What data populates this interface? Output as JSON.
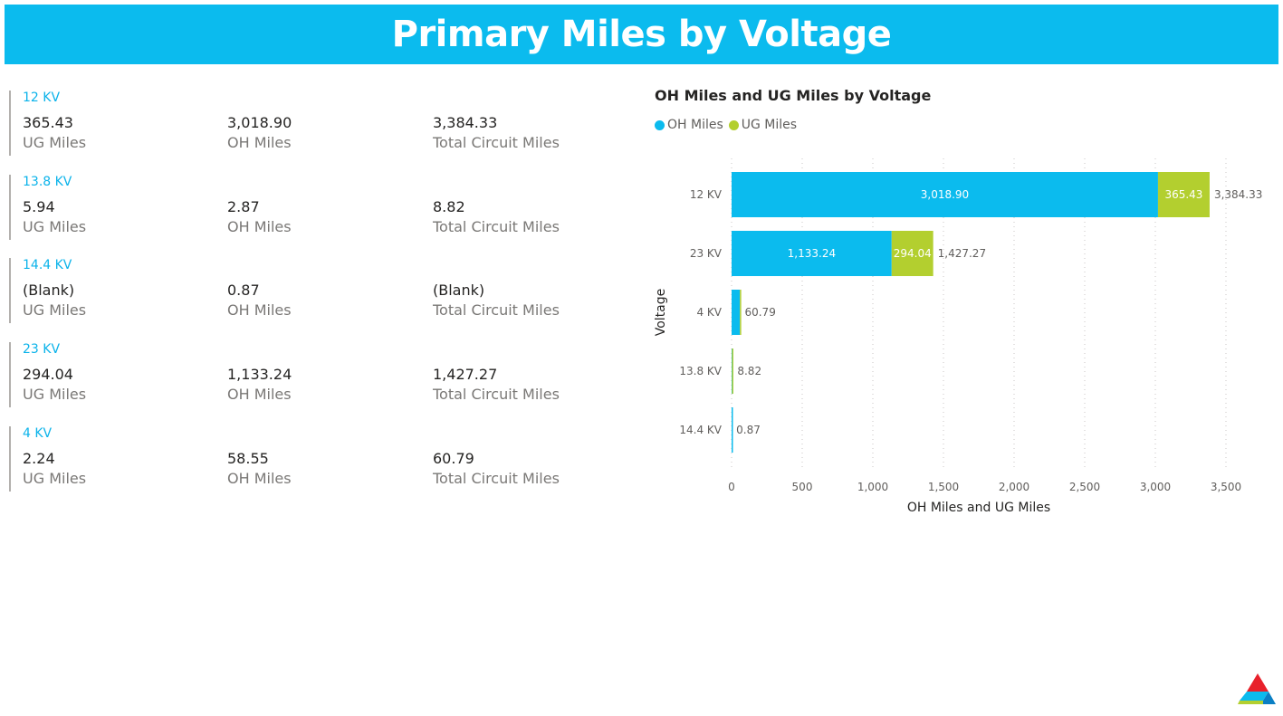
{
  "header": {
    "title": "Primary Miles by Voltage"
  },
  "cards": [
    {
      "voltage": "12 KV",
      "ug_value": "365.43",
      "ug_label": "UG Miles",
      "oh_value": "3,018.90",
      "oh_label": "OH Miles",
      "total_value": "3,384.33",
      "total_label": "Total Circuit Miles"
    },
    {
      "voltage": "13.8 KV",
      "ug_value": "5.94",
      "ug_label": "UG Miles",
      "oh_value": "2.87",
      "oh_label": "OH Miles",
      "total_value": "8.82",
      "total_label": "Total Circuit Miles"
    },
    {
      "voltage": "14.4 KV",
      "ug_value": "(Blank)",
      "ug_label": "UG Miles",
      "oh_value": "0.87",
      "oh_label": "OH Miles",
      "total_value": "(Blank)",
      "total_label": "Total Circuit Miles"
    },
    {
      "voltage": "23 KV",
      "ug_value": "294.04",
      "ug_label": "UG Miles",
      "oh_value": "1,133.24",
      "oh_label": "OH Miles",
      "total_value": "1,427.27",
      "total_label": "Total Circuit Miles"
    },
    {
      "voltage": "4 KV",
      "ug_value": "2.24",
      "ug_label": "UG Miles",
      "oh_value": "58.55",
      "oh_label": "OH Miles",
      "total_value": "60.79",
      "total_label": "Total Circuit Miles"
    }
  ],
  "colors": {
    "oh": "#0bbbee",
    "ug": "#b3cf2f",
    "banner": "#0bbbee"
  },
  "chart_data": {
    "type": "bar",
    "orientation": "horizontal",
    "stacked": true,
    "title": "OH Miles and UG Miles by Voltage",
    "xlabel": "OH Miles and UG Miles",
    "ylabel": "Voltage",
    "categories": [
      "12 KV",
      "23 KV",
      "4 KV",
      "13.8 KV",
      "14.4 KV"
    ],
    "series": [
      {
        "name": "OH Miles",
        "values": [
          3018.9,
          1133.24,
          58.55,
          2.87,
          0.87
        ],
        "labels": [
          "3,018.90",
          "1,133.24",
          "",
          "",
          ""
        ]
      },
      {
        "name": "UG Miles",
        "values": [
          365.43,
          294.04,
          2.24,
          5.94,
          0
        ],
        "labels": [
          "365.43",
          "294.04",
          "",
          "",
          ""
        ]
      }
    ],
    "totals": [
      "3,384.33",
      "1,427.27",
      "60.79",
      "8.82",
      "0.87"
    ],
    "xlim": [
      0,
      3500
    ],
    "xticks": [
      0,
      500,
      1000,
      1500,
      2000,
      2500,
      3000,
      3500
    ],
    "xtick_labels": [
      "0",
      "500",
      "1,000",
      "1,500",
      "2,000",
      "2,500",
      "3,000",
      "3,500"
    ],
    "legend_position": "top-left",
    "grid": true
  }
}
